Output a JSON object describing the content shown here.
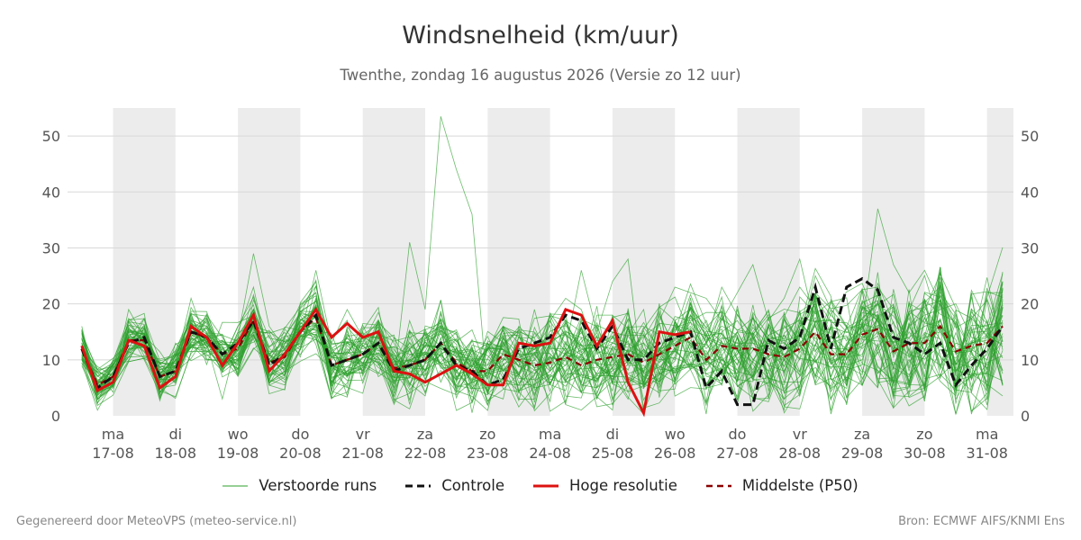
{
  "chart_data": {
    "type": "line",
    "title": "Windsnelheid (km/uur)",
    "subtitle": "Twenthe, zondag 16 augustus 2026 (Versie zo 12 uur)",
    "ylim": [
      0,
      55
    ],
    "yticks": [
      0,
      10,
      20,
      30,
      40,
      50
    ],
    "grid": true,
    "x_start": "16-08 12:00",
    "x_step_hours": 6,
    "day_labels": [
      {
        "day": "ma",
        "date": "17-08"
      },
      {
        "day": "di",
        "date": "18-08"
      },
      {
        "day": "wo",
        "date": "19-08"
      },
      {
        "day": "do",
        "date": "20-08"
      },
      {
        "day": "vr",
        "date": "21-08"
      },
      {
        "day": "za",
        "date": "22-08"
      },
      {
        "day": "zo",
        "date": "23-08"
      },
      {
        "day": "ma",
        "date": "24-08"
      },
      {
        "day": "di",
        "date": "25-08"
      },
      {
        "day": "wo",
        "date": "26-08"
      },
      {
        "day": "do",
        "date": "27-08"
      },
      {
        "day": "vr",
        "date": "28-08"
      },
      {
        "day": "za",
        "date": "29-08"
      },
      {
        "day": "zo",
        "date": "30-08"
      },
      {
        "day": "ma",
        "date": "31-08"
      }
    ],
    "series": [
      {
        "name": "Hoge resolutie",
        "color": "#dd1111",
        "values": [
          12.5,
          4.5,
          6,
          13.5,
          12.5,
          5,
          7,
          16,
          14,
          9,
          13,
          18,
          8,
          11,
          15,
          19,
          14,
          16.5,
          14,
          15,
          8,
          7.5,
          6,
          7.5,
          9,
          7.5,
          5.5,
          5.5,
          13,
          12.5,
          13,
          19,
          18,
          12.5,
          17,
          6,
          0.5,
          15,
          14.5,
          15
        ]
      },
      {
        "name": "Controle",
        "color": "#111111",
        "values": [
          12,
          5,
          7,
          13,
          14,
          7,
          8,
          15,
          14,
          11,
          13,
          17,
          9,
          11,
          15,
          18,
          9,
          10,
          11,
          13,
          8,
          9,
          10,
          13,
          9,
          8,
          5.5,
          6.5,
          12,
          13,
          14,
          18,
          17,
          12,
          16,
          10,
          10,
          13,
          14,
          15,
          5,
          8,
          2,
          2,
          13.5,
          12,
          14,
          23,
          12,
          23,
          24.5,
          22.5,
          14,
          13,
          11,
          13,
          5.5,
          9,
          12,
          16
        ]
      },
      {
        "name": "Middelste (P50)",
        "color": "#8b0000",
        "values": [
          12,
          5.5,
          7,
          13.5,
          13.5,
          7,
          8,
          15,
          14,
          11,
          12,
          17,
          9.5,
          10.5,
          15,
          17.5,
          9,
          10,
          11,
          13,
          8.5,
          9,
          10,
          13,
          9.5,
          8,
          8,
          11,
          10,
          9,
          9.5,
          10.5,
          9,
          10,
          10.5,
          11,
          9.5,
          11,
          12.5,
          14,
          10,
          12.5,
          12,
          12,
          11,
          10.5,
          12,
          15,
          11,
          11,
          14.5,
          15.5,
          11.5,
          13,
          13,
          16,
          11.5,
          12.5,
          13,
          16
        ]
      }
    ],
    "ensemble": {
      "name": "Verstoorde runs",
      "color": "#2ca02c",
      "count": 50,
      "note_values": "ensemble members spread approximately 0 to 54 km/uur around P50"
    },
    "ensemble_runs": [
      [
        9.5,
        1,
        6,
        19,
        14,
        3,
        9,
        21,
        13,
        3,
        14,
        29,
        16,
        12,
        14,
        26,
        13,
        19,
        14,
        14,
        6,
        31,
        19,
        10,
        30,
        13,
        4,
        3,
        16,
        13,
        12,
        12,
        26,
        15,
        24,
        28,
        5,
        17,
        23,
        22,
        21,
        17,
        22,
        27,
        17,
        21,
        28,
        16,
        7,
        13,
        16,
        37,
        27,
        22,
        26,
        20,
        5,
        7,
        22,
        22
      ],
      [
        16,
        4,
        8,
        15,
        10,
        4,
        10,
        18,
        11,
        8,
        15,
        23,
        10,
        14,
        20,
        22,
        8,
        12,
        9,
        17,
        13,
        7,
        15,
        9,
        5,
        11,
        13,
        8,
        7,
        19,
        8,
        17,
        15,
        9,
        7,
        12,
        13,
        10,
        15,
        19,
        13,
        23,
        18,
        14,
        9,
        8,
        14,
        25,
        19,
        10,
        15,
        23,
        11,
        16,
        18,
        19,
        20,
        14,
        13,
        20
      ],
      [
        11,
        7,
        9,
        13,
        16,
        8,
        6,
        14,
        18,
        14,
        10,
        15,
        6,
        8,
        14,
        15,
        6,
        11,
        15,
        7,
        9,
        12,
        4,
        13,
        11,
        6,
        12,
        16,
        11,
        11,
        18,
        12,
        6,
        18,
        18,
        9,
        9,
        6,
        16,
        13,
        8,
        12,
        15,
        10,
        13,
        13,
        10,
        17,
        13,
        14,
        12,
        15,
        9,
        15,
        11,
        9,
        13,
        12,
        17,
        8
      ],
      [
        13,
        3,
        5,
        17,
        13,
        5,
        7,
        17,
        15,
        10,
        12,
        18,
        9,
        11,
        17,
        19,
        12,
        14,
        11,
        11,
        10,
        13,
        8,
        15,
        7,
        9,
        12,
        10,
        15,
        14,
        17,
        21,
        19,
        11,
        13,
        16,
        6,
        11,
        14,
        16,
        12,
        15,
        17,
        13,
        10,
        12,
        16,
        20,
        12,
        9,
        10,
        18,
        13,
        14,
        16,
        17,
        11,
        13,
        14,
        18
      ],
      [
        10,
        6,
        7,
        14,
        12,
        6,
        9,
        15,
        13,
        12,
        13,
        17,
        11,
        13,
        15,
        18,
        10,
        13,
        12,
        13,
        9,
        10,
        11,
        12,
        10,
        10,
        8,
        9,
        12,
        12,
        13,
        15,
        14,
        13,
        14,
        13,
        11,
        12,
        13,
        15,
        11,
        14,
        13,
        13,
        12,
        11,
        13,
        16,
        12,
        12,
        13,
        16,
        12,
        13,
        14,
        15,
        12,
        12,
        13,
        16
      ]
    ]
  },
  "legend": {
    "perturbed": "Verstoorde runs",
    "control": "Controle",
    "highres": "Hoge resolutie",
    "median": "Middelste (P50)"
  },
  "footer": {
    "left": "Gegenereerd door MeteoVPS (meteo-service.nl)",
    "right": "Bron: ECMWF AIFS/KNMI Ens"
  }
}
